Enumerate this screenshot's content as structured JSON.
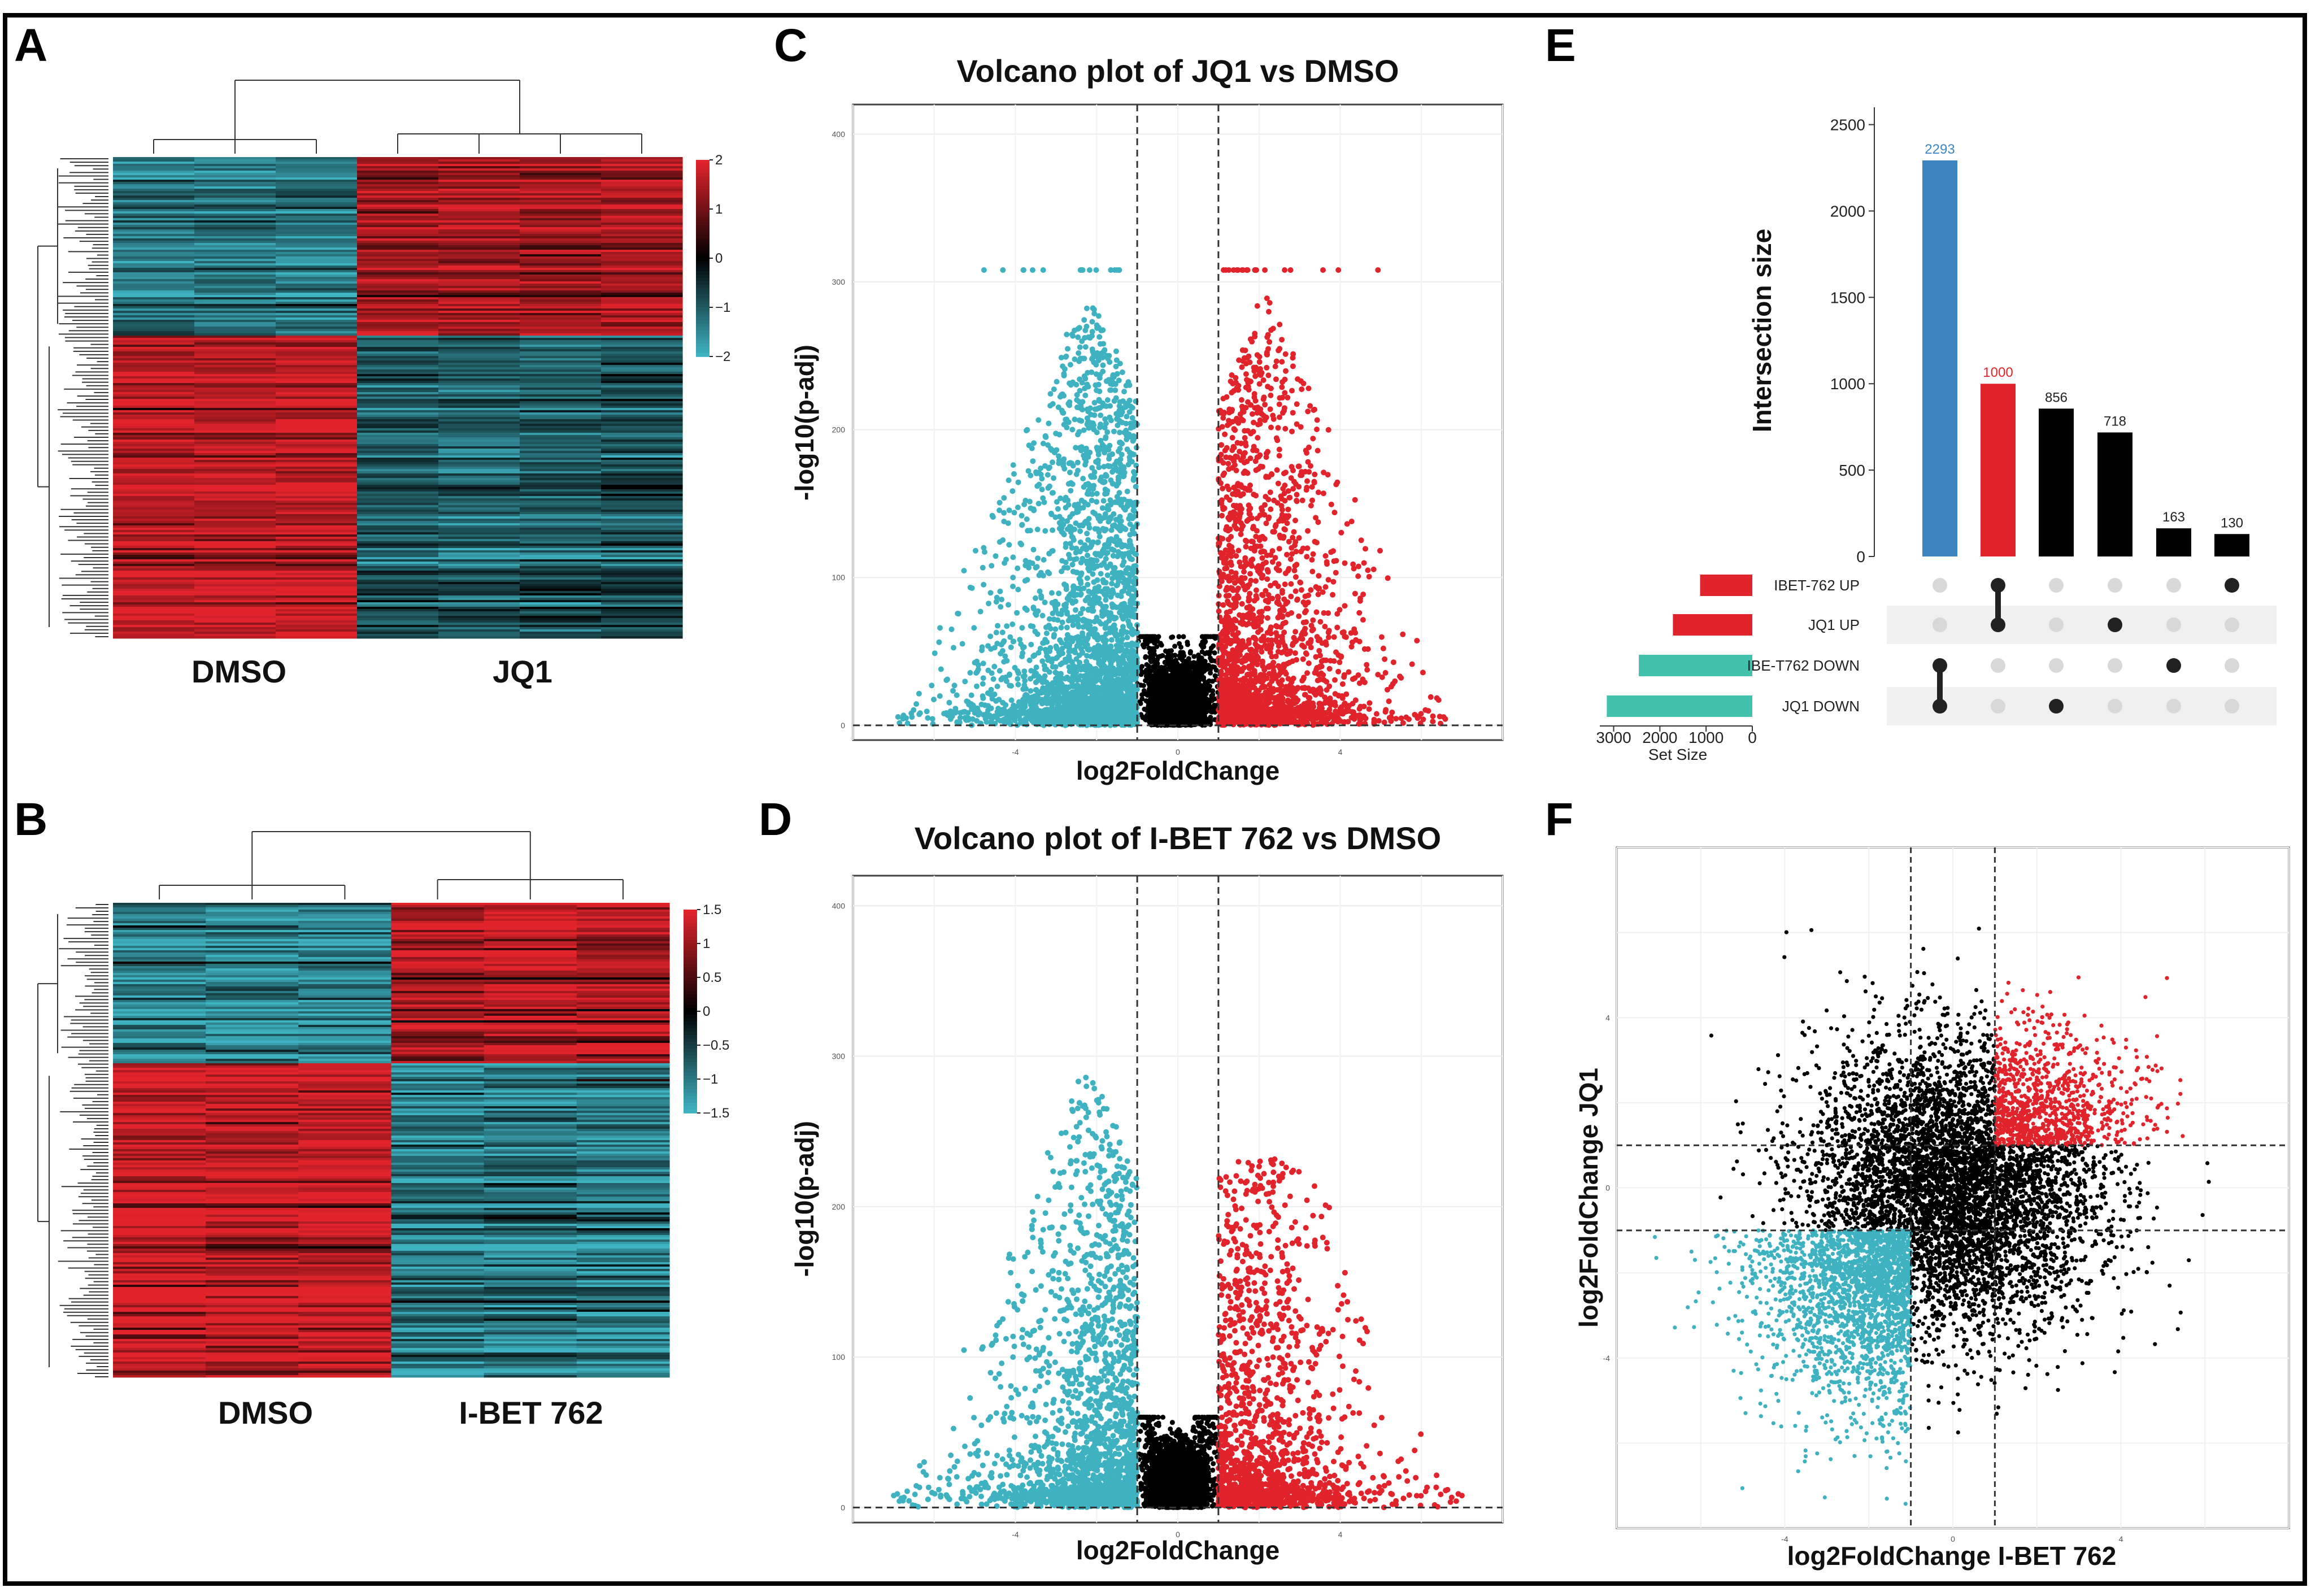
{
  "colors": {
    "up": "#e1232b",
    "down": "#3fb2c1",
    "ns": "#000000",
    "heat_high": "#e1232b",
    "heat_mid": "#000000",
    "heat_low": "#3fb2c1",
    "upset_highlight_blue": "#3d85c1",
    "upset_setbar": "#42c1ad"
  },
  "panels": {
    "A": {
      "letter": "A",
      "groups": [
        "DMSO",
        "JQ1"
      ],
      "legend_ticks": [
        "2",
        "1",
        "0",
        "−1",
        "−2"
      ],
      "legend_values": [
        2,
        1,
        0,
        -1,
        -2
      ]
    },
    "B": {
      "letter": "B",
      "groups": [
        "DMSO",
        "I-BET 762"
      ],
      "legend_ticks": [
        "1.5",
        "1",
        "0.5",
        "0",
        "−0.5",
        "−1",
        "−1.5"
      ],
      "legend_values": [
        1.5,
        1,
        0.5,
        0,
        -0.5,
        -1,
        -1.5
      ]
    },
    "C": {
      "letter": "C",
      "title": "Volcano plot of JQ1 vs DMSO",
      "xlabel": "log2FoldChange",
      "ylabel": "-log10(p-adj)"
    },
    "D": {
      "letter": "D",
      "title": "Volcano plot of I-BET 762 vs DMSO",
      "xlabel": "log2FoldChange",
      "ylabel": "-log10(p-adj)"
    },
    "E": {
      "letter": "E",
      "ylabel": "Intersection size",
      "setsize_label": "Set Size"
    },
    "F": {
      "letter": "F",
      "xlabel": "log2FoldChange I-BET 762",
      "ylabel": "log2FoldChange JQ1"
    }
  },
  "chart_data": [
    {
      "panel": "A",
      "type": "heatmap",
      "columns": [
        "DMSO",
        "DMSO",
        "DMSO",
        "JQ1",
        "JQ1",
        "JQ1",
        "JQ1"
      ],
      "row_blocks": [
        {
          "fraction": 0.37,
          "values": [
            -1.3,
            -1.3,
            -1.3,
            1.4,
            1.5,
            1.4,
            1.5
          ]
        },
        {
          "fraction": 0.63,
          "values": [
            1.6,
            1.6,
            1.6,
            -1.0,
            -1.1,
            -1.0,
            -0.9
          ]
        }
      ],
      "color_range": [
        -2,
        2
      ]
    },
    {
      "panel": "B",
      "type": "heatmap",
      "columns": [
        "DMSO",
        "DMSO",
        "DMSO",
        "I-BET 762",
        "I-BET 762",
        "I-BET 762"
      ],
      "row_blocks": [
        {
          "fraction": 0.34,
          "values": [
            -1.1,
            -1.1,
            -1.1,
            1.2,
            1.3,
            1.2
          ]
        },
        {
          "fraction": 0.66,
          "values": [
            1.3,
            1.3,
            1.3,
            -1.1,
            -1.0,
            -1.1
          ]
        }
      ],
      "color_range": [
        -1.5,
        1.5
      ]
    },
    {
      "panel": "C",
      "type": "scatter",
      "title": "Volcano plot of JQ1 vs DMSO",
      "xlabel": "log2FoldChange",
      "ylabel": "-log10(p-adj)",
      "xlim": [
        -8,
        8
      ],
      "ylim": [
        -10,
        420
      ],
      "x_ticks": [
        -4,
        0,
        4
      ],
      "y_ticks": [
        0,
        100,
        200,
        300,
        400
      ],
      "thresholds": {
        "log2fc": 1,
        "padj_line": 0
      },
      "series": [
        {
          "name": "down",
          "n_points": 3200,
          "capped_y": 308,
          "max_abs_x": 6.9
        },
        {
          "name": "up",
          "n_points": 2300,
          "capped_y": 308,
          "max_abs_x": 6.6
        },
        {
          "name": "not significant",
          "n_points": 3000
        }
      ]
    },
    {
      "panel": "D",
      "type": "scatter",
      "title": "Volcano plot of I-BET 762 vs DMSO",
      "xlabel": "log2FoldChange",
      "ylabel": "-log10(p-adj)",
      "xlim": [
        -8,
        8
      ],
      "ylim": [
        -10,
        420
      ],
      "x_ticks": [
        -4,
        0,
        4
      ],
      "y_ticks": [
        0,
        100,
        200,
        300,
        400
      ],
      "thresholds": {
        "log2fc": 1,
        "padj_line": 0
      },
      "series": [
        {
          "name": "down",
          "n_points": 2400,
          "max_y": 308,
          "max_abs_x": 7.0
        },
        {
          "name": "up",
          "n_points": 1500,
          "max_y": 232,
          "max_abs_x": 7.0
        },
        {
          "name": "not significant",
          "n_points": 3000
        }
      ]
    },
    {
      "panel": "E",
      "type": "bar",
      "title": "",
      "ylabel": "Intersection size",
      "ylim": [
        0,
        2600
      ],
      "y_ticks": [
        0,
        500,
        1000,
        1500,
        2000,
        2500
      ],
      "intersections": [
        {
          "value": 2293,
          "label": "2293",
          "sets": [
            "IBE-T762 DOWN",
            "JQ1 DOWN"
          ],
          "color": "#3d85c1"
        },
        {
          "value": 1000,
          "label": "1000",
          "sets": [
            "IBET-762 UP",
            "JQ1 UP"
          ],
          "color": "#e1232b"
        },
        {
          "value": 856,
          "label": "856",
          "sets": [
            "JQ1 DOWN"
          ],
          "color": "#000000"
        },
        {
          "value": 718,
          "label": "718",
          "sets": [
            "JQ1 UP"
          ],
          "color": "#000000"
        },
        {
          "value": 163,
          "label": "163",
          "sets": [
            "IBE-T762 DOWN"
          ],
          "color": "#000000"
        },
        {
          "value": 130,
          "label": "130",
          "sets": [
            "IBET-762 UP"
          ],
          "color": "#000000"
        }
      ],
      "sets": [
        {
          "name": "IBET-762 UP",
          "size": 1130,
          "color": "#e1232b"
        },
        {
          "name": "JQ1 UP",
          "size": 1718,
          "color": "#e1232b"
        },
        {
          "name": "IBE-T762 DOWN",
          "size": 2456,
          "color": "#42c1ad"
        },
        {
          "name": "JQ1 DOWN",
          "size": 3149,
          "color": "#42c1ad"
        }
      ],
      "set_size_ticks": [
        3000,
        2000,
        1000,
        0
      ],
      "set_size_tick_labels": [
        "3000",
        "2000",
        "1000",
        "0"
      ],
      "set_size_xlim": [
        0,
        3300
      ]
    },
    {
      "panel": "F",
      "type": "scatter",
      "xlabel": "log2FoldChange I-BET 762",
      "ylabel": "log2FoldChange JQ1",
      "xlim": [
        -8,
        8
      ],
      "ylim": [
        -8,
        8
      ],
      "x_ticks": [
        -4,
        0,
        4
      ],
      "y_ticks": [
        -4,
        0,
        4
      ],
      "thresholds": {
        "x": [
          -1,
          1
        ],
        "y": [
          -1,
          1
        ]
      },
      "series": [
        {
          "name": "both up",
          "n_points": 1000
        },
        {
          "name": "both down",
          "n_points": 2293
        },
        {
          "name": "other",
          "n_points": 6000
        }
      ]
    }
  ]
}
